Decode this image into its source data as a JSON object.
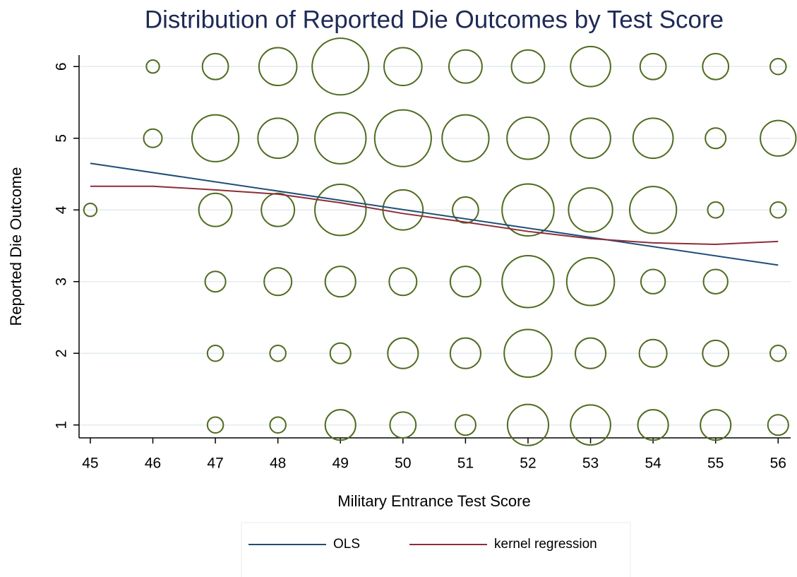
{
  "chart_data": {
    "type": "scatter",
    "title": "Distribution of Reported Die Outcomes by Test Score",
    "x_label": "Military Entrance Test Score",
    "y_label": "Reported Die Outcome",
    "xlim": [
      44.82,
      56.2
    ],
    "ylim": [
      0.82,
      6.16
    ],
    "xticks": [
      45,
      46,
      47,
      48,
      49,
      50,
      51,
      52,
      53,
      54,
      55,
      56
    ],
    "yticks": [
      1,
      2,
      3,
      4,
      5,
      6
    ],
    "grid": true,
    "legend": "bottom",
    "points": {
      "color": "#4f6b1f",
      "x": [
        46,
        47,
        48,
        49,
        50,
        51,
        52,
        53,
        54,
        55,
        56,
        46,
        47,
        48,
        49,
        50,
        51,
        52,
        53,
        54,
        55,
        56,
        45,
        47,
        48,
        49,
        50,
        51,
        52,
        53,
        54,
        55,
        56,
        47,
        48,
        49,
        50,
        51,
        52,
        53,
        54,
        55,
        47,
        48,
        49,
        50,
        51,
        52,
        53,
        54,
        55,
        56,
        47,
        48,
        49,
        50,
        51,
        52,
        53,
        54,
        55,
        56
      ],
      "y": [
        6,
        6,
        6,
        6,
        6,
        6,
        6,
        6,
        6,
        6,
        6,
        5,
        5,
        5,
        5,
        5,
        5,
        5,
        5,
        5,
        5,
        5,
        4,
        4,
        4,
        4,
        4,
        4,
        4,
        4,
        4,
        4,
        4,
        3,
        3,
        3,
        3,
        3,
        3,
        3,
        3,
        3,
        2,
        2,
        2,
        2,
        2,
        2,
        2,
        2,
        2,
        2,
        1,
        1,
        1,
        1,
        1,
        1,
        1,
        1,
        1,
        1
      ],
      "sizes": [
        2,
        8,
        17,
        38,
        17,
        13,
        13,
        19,
        8,
        8,
        3,
        4,
        26,
        19,
        31,
        38,
        26,
        21,
        19,
        19,
        5,
        15,
        2,
        13,
        13,
        31,
        19,
        8,
        32,
        23,
        26,
        3,
        3,
        5,
        9,
        11,
        9,
        11,
        32,
        27,
        7,
        7,
        3,
        3,
        5,
        11,
        11,
        27,
        11,
        9,
        8,
        3,
        3,
        3,
        11,
        8,
        5,
        20,
        19,
        11,
        11,
        5
      ]
    },
    "series": [
      {
        "name": "OLS",
        "color": "#1f4e79",
        "x": [
          45,
          56
        ],
        "values": [
          4.65,
          3.23
        ]
      },
      {
        "name": "kernel regression",
        "color": "#8b2e3a",
        "x": [
          45,
          46,
          47,
          48,
          49,
          50,
          51,
          52,
          53,
          54,
          55,
          56
        ],
        "values": [
          4.33,
          4.33,
          4.28,
          4.22,
          4.1,
          3.95,
          3.83,
          3.7,
          3.6,
          3.54,
          3.52,
          3.56
        ]
      }
    ]
  }
}
